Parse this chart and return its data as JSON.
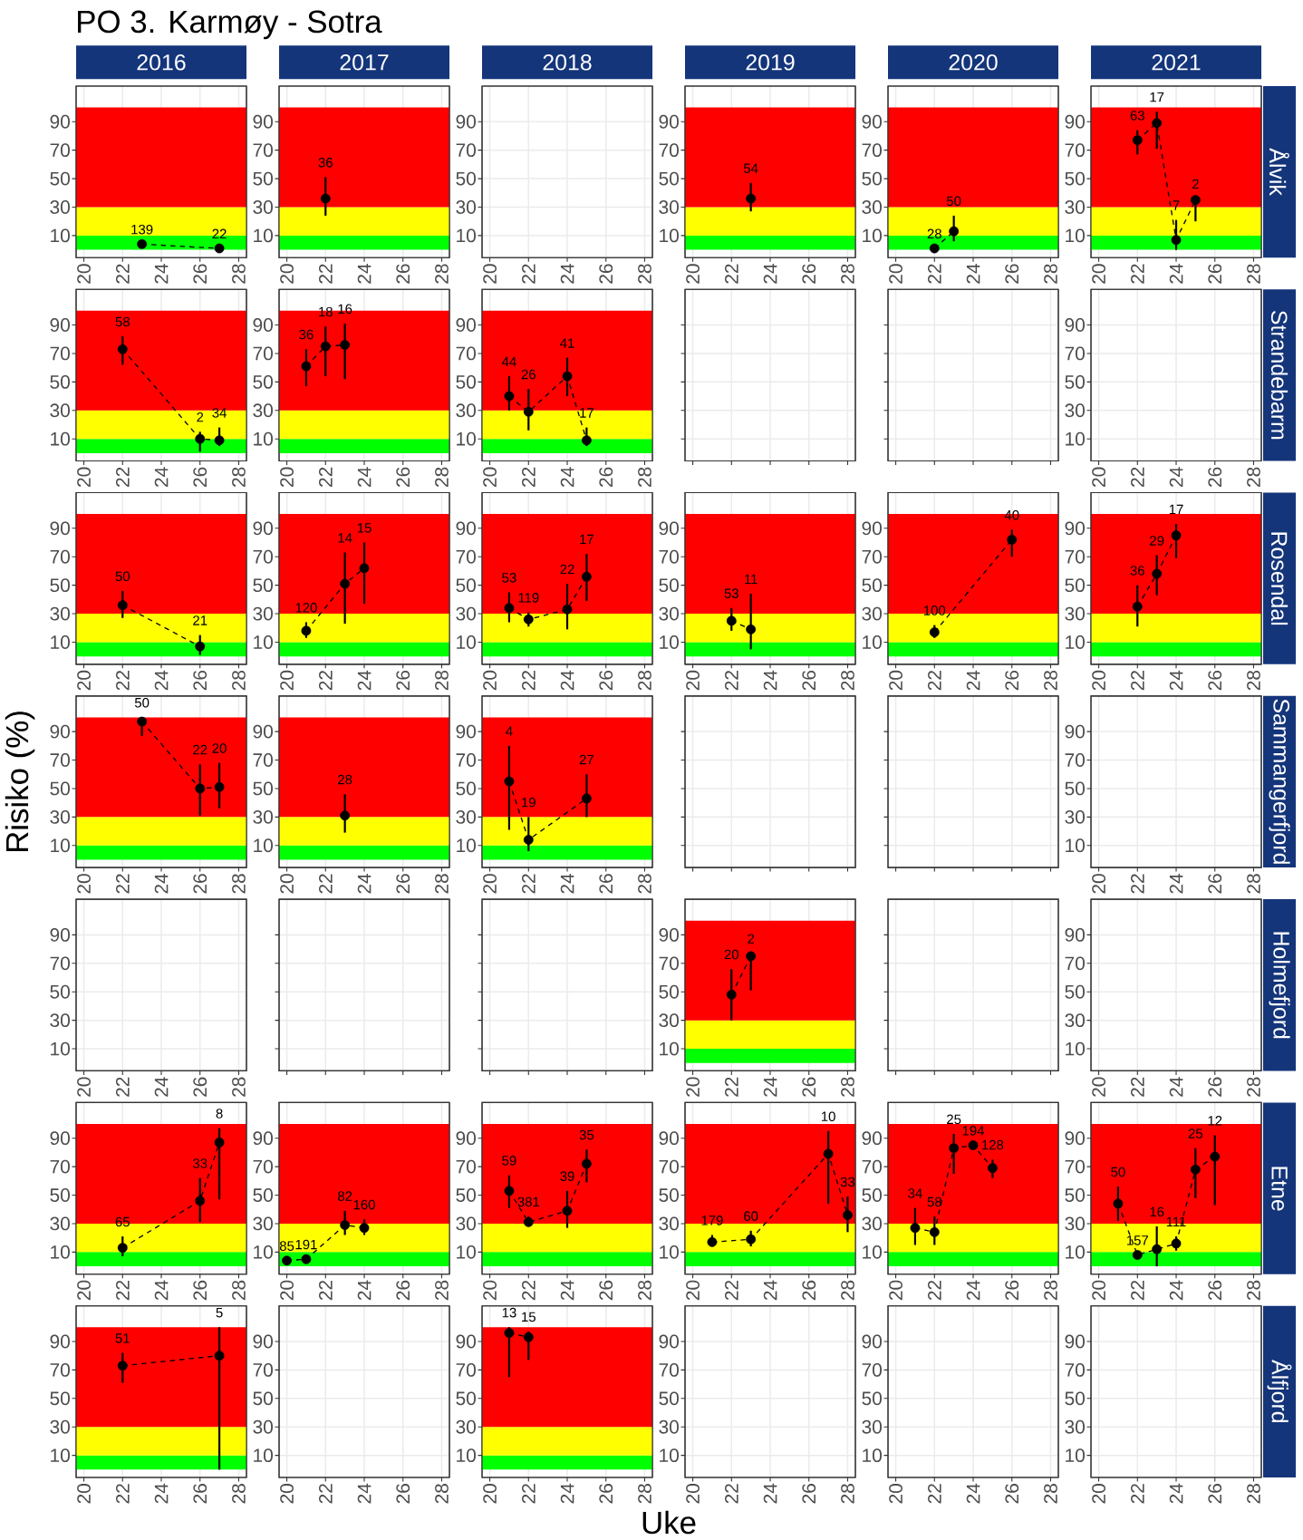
{
  "chart_data": [
    {
      "type": "other",
      "title": "PO 3. Karmøy - Sotra",
      "xlabel": "Uke",
      "ylabel": "Risiko (%)"
    },
    {
      "type": "line",
      "title": "2016",
      "x": [
        23,
        27
      ],
      "values": [
        4,
        1
      ],
      "color": "#000000",
      "marker": "circle",
      "line_style": "dashed",
      "bands": [
        {
          "axis": "y",
          "from": 0,
          "to": 10,
          "color": "#00ff00"
        },
        {
          "axis": "y",
          "from": 10,
          "to": 30,
          "color": "#ffff00"
        },
        {
          "axis": "y",
          "from": 30,
          "to": 100,
          "color": "#ff0000"
        }
      ],
      "annotations": [
        {
          "text": "139",
          "x": 23,
          "y": 4
        },
        {
          "text": "22",
          "x": 27,
          "y": 1
        }
      ],
      "xlim": [
        19.6,
        28.4
      ],
      "ylim": [
        -5.5,
        115
      ],
      "xticks": [
        20,
        22,
        24,
        26,
        28
      ],
      "yticks": [
        10,
        30,
        50,
        70,
        90
      ],
      "grid": true
    },
    {
      "type": "line",
      "title": "2017",
      "x": [
        22
      ],
      "values": [
        36
      ],
      "errors": [
        [
          24,
          51
        ]
      ],
      "color": "#000000",
      "marker": "circle",
      "line_style": "dashed",
      "bands": [
        {
          "axis": "y",
          "from": 0,
          "to": 10,
          "color": "#00ff00"
        },
        {
          "axis": "y",
          "from": 10,
          "to": 30,
          "color": "#ffff00"
        },
        {
          "axis": "y",
          "from": 30,
          "to": 100,
          "color": "#ff0000"
        }
      ],
      "annotations": [
        {
          "text": "36",
          "x": 22,
          "y": 51
        }
      ],
      "xlim": [
        19.6,
        28.4
      ],
      "ylim": [
        -5.5,
        115
      ],
      "xticks": [
        20,
        22,
        24,
        26,
        28
      ],
      "yticks": [
        10,
        30,
        50,
        70,
        90
      ],
      "grid": true
    },
    {
      "type": "line",
      "title": "2018",
      "xlim": [
        19.6,
        28.4
      ],
      "ylim": [
        -5.5,
        115
      ],
      "xticks": [
        20,
        22,
        24,
        26,
        28
      ],
      "yticks": [
        10,
        30,
        50,
        70,
        90
      ],
      "grid": true
    },
    {
      "type": "line",
      "title": "2019",
      "x": [
        23
      ],
      "values": [
        36
      ],
      "errors": [
        [
          27,
          47
        ]
      ],
      "color": "#000000",
      "marker": "circle",
      "line_style": "dashed",
      "bands": [
        {
          "axis": "y",
          "from": 0,
          "to": 10,
          "color": "#00ff00"
        },
        {
          "axis": "y",
          "from": 10,
          "to": 30,
          "color": "#ffff00"
        },
        {
          "axis": "y",
          "from": 30,
          "to": 100,
          "color": "#ff0000"
        }
      ],
      "annotations": [
        {
          "text": "54",
          "x": 23,
          "y": 47
        }
      ],
      "xlim": [
        19.6,
        28.4
      ],
      "ylim": [
        -5.5,
        115
      ],
      "xticks": [
        20,
        22,
        24,
        26,
        28
      ],
      "yticks": [
        10,
        30,
        50,
        70,
        90
      ],
      "grid": true
    },
    {
      "type": "line",
      "title": "2020",
      "x": [
        22,
        23
      ],
      "values": [
        1,
        13
      ],
      "errors": [
        null,
        [
          6,
          24
        ]
      ],
      "color": "#000000",
      "marker": "circle",
      "line_style": "dashed",
      "bands": [
        {
          "axis": "y",
          "from": 0,
          "to": 10,
          "color": "#00ff00"
        },
        {
          "axis": "y",
          "from": 10,
          "to": 30,
          "color": "#ffff00"
        },
        {
          "axis": "y",
          "from": 30,
          "to": 100,
          "color": "#ff0000"
        }
      ],
      "annotations": [
        {
          "text": "28",
          "x": 22,
          "y": 1
        },
        {
          "text": "50",
          "x": 23,
          "y": 24
        }
      ],
      "xlim": [
        19.6,
        28.4
      ],
      "ylim": [
        -5.5,
        115
      ],
      "xticks": [
        20,
        22,
        24,
        26,
        28
      ],
      "yticks": [
        10,
        30,
        50,
        70,
        90
      ],
      "grid": true
    },
    {
      "type": "line",
      "title": "2021",
      "y2label": "Ålvik",
      "x": [
        22,
        23,
        24,
        25
      ],
      "values": [
        77,
        89,
        7,
        35
      ],
      "errors": [
        [
          67,
          84
        ],
        [
          71,
          97
        ],
        [
          0,
          21
        ],
        [
          20,
          36
        ]
      ],
      "color": "#000000",
      "marker": "circle",
      "line_style": "dashed",
      "bands": [
        {
          "axis": "y",
          "from": 0,
          "to": 10,
          "color": "#00ff00"
        },
        {
          "axis": "y",
          "from": 10,
          "to": 30,
          "color": "#ffff00"
        },
        {
          "axis": "y",
          "from": 30,
          "to": 100,
          "color": "#ff0000"
        }
      ],
      "annotations": [
        {
          "text": "63",
          "x": 22,
          "y": 84
        },
        {
          "text": "17",
          "x": 23,
          "y": 97
        },
        {
          "text": "7",
          "x": 24,
          "y": 21
        },
        {
          "text": "2",
          "x": 25,
          "y": 36
        }
      ],
      "xlim": [
        19.6,
        28.4
      ],
      "ylim": [
        -5.5,
        115
      ],
      "xticks": [
        20,
        22,
        24,
        26,
        28
      ],
      "yticks": [
        10,
        30,
        50,
        70,
        90
      ],
      "grid": true
    },
    {
      "type": "line",
      "x": [
        22,
        26,
        27
      ],
      "values": [
        73,
        10,
        9
      ],
      "errors": [
        [
          62,
          82
        ],
        [
          1,
          15
        ],
        [
          5,
          18
        ]
      ],
      "color": "#000000",
      "marker": "circle",
      "line_style": "dashed",
      "bands": [
        {
          "axis": "y",
          "from": 0,
          "to": 10,
          "color": "#00ff00"
        },
        {
          "axis": "y",
          "from": 10,
          "to": 30,
          "color": "#ffff00"
        },
        {
          "axis": "y",
          "from": 30,
          "to": 100,
          "color": "#ff0000"
        }
      ],
      "annotations": [
        {
          "text": "58",
          "x": 22,
          "y": 82
        },
        {
          "text": "2",
          "x": 26,
          "y": 15
        },
        {
          "text": "34",
          "x": 27,
          "y": 18
        }
      ],
      "xlim": [
        19.6,
        28.4
      ],
      "ylim": [
        -5.5,
        115
      ],
      "xticks": [
        20,
        22,
        24,
        26,
        28
      ],
      "yticks": [
        10,
        30,
        50,
        70,
        90
      ],
      "grid": true
    },
    {
      "type": "line",
      "x": [
        21,
        22,
        23
      ],
      "values": [
        61,
        75,
        76
      ],
      "errors": [
        [
          47,
          73
        ],
        [
          54,
          89
        ],
        [
          52,
          91
        ]
      ],
      "color": "#000000",
      "marker": "circle",
      "line_style": "dashed",
      "bands": [
        {
          "axis": "y",
          "from": 0,
          "to": 10,
          "color": "#00ff00"
        },
        {
          "axis": "y",
          "from": 10,
          "to": 30,
          "color": "#ffff00"
        },
        {
          "axis": "y",
          "from": 30,
          "to": 100,
          "color": "#ff0000"
        }
      ],
      "annotations": [
        {
          "text": "36",
          "x": 21,
          "y": 73
        },
        {
          "text": "18",
          "x": 22,
          "y": 89
        },
        {
          "text": "16",
          "x": 23,
          "y": 91
        }
      ],
      "xlim": [
        19.6,
        28.4
      ],
      "ylim": [
        -5.5,
        115
      ],
      "xticks": [
        20,
        22,
        24,
        26,
        28
      ],
      "yticks": [
        10,
        30,
        50,
        70,
        90
      ],
      "grid": true
    },
    {
      "type": "line",
      "x": [
        21,
        22,
        24,
        25
      ],
      "values": [
        40,
        29,
        54,
        9
      ],
      "errors": [
        [
          30,
          54
        ],
        [
          16,
          45
        ],
        [
          40,
          67
        ],
        [
          5,
          18
        ]
      ],
      "color": "#000000",
      "marker": "circle",
      "line_style": "dashed",
      "bands": [
        {
          "axis": "y",
          "from": 0,
          "to": 10,
          "color": "#00ff00"
        },
        {
          "axis": "y",
          "from": 10,
          "to": 30,
          "color": "#ffff00"
        },
        {
          "axis": "y",
          "from": 30,
          "to": 100,
          "color": "#ff0000"
        }
      ],
      "annotations": [
        {
          "text": "44",
          "x": 21,
          "y": 54
        },
        {
          "text": "26",
          "x": 22,
          "y": 45
        },
        {
          "text": "41",
          "x": 24,
          "y": 67
        },
        {
          "text": "17",
          "x": 25,
          "y": 18
        }
      ],
      "xlim": [
        19.6,
        28.4
      ],
      "ylim": [
        -5.5,
        115
      ],
      "xticks": [
        20,
        22,
        24,
        26,
        28
      ],
      "yticks": [
        10,
        30,
        50,
        70,
        90
      ],
      "grid": true
    },
    {
      "type": "line",
      "y2label": "Strandebarm",
      "xlim": [
        19.6,
        28.4
      ],
      "ylim": [
        -5.5,
        115
      ],
      "xticks": [
        20,
        22,
        24,
        26,
        28
      ],
      "yticks": [
        10,
        30,
        50,
        70,
        90
      ],
      "grid": true
    },
    {
      "type": "line",
      "x": [
        22,
        26
      ],
      "values": [
        36,
        7
      ],
      "errors": [
        [
          27,
          46
        ],
        [
          1,
          15
        ]
      ],
      "color": "#000000",
      "marker": "circle",
      "line_style": "dashed",
      "bands": [
        {
          "axis": "y",
          "from": 0,
          "to": 10,
          "color": "#00ff00"
        },
        {
          "axis": "y",
          "from": 10,
          "to": 30,
          "color": "#ffff00"
        },
        {
          "axis": "y",
          "from": 30,
          "to": 100,
          "color": "#ff0000"
        }
      ],
      "annotations": [
        {
          "text": "50",
          "x": 22,
          "y": 46
        },
        {
          "text": "21",
          "x": 26,
          "y": 15
        }
      ],
      "xlim": [
        19.6,
        28.4
      ],
      "ylim": [
        -5.5,
        115
      ],
      "xticks": [
        20,
        22,
        24,
        26,
        28
      ],
      "yticks": [
        10,
        30,
        50,
        70,
        90
      ],
      "grid": true
    },
    {
      "type": "line",
      "x": [
        21,
        23,
        24
      ],
      "values": [
        18,
        51,
        62
      ],
      "errors": [
        [
          13,
          24
        ],
        [
          23,
          73
        ],
        [
          37,
          80
        ]
      ],
      "color": "#000000",
      "marker": "circle",
      "line_style": "dashed",
      "bands": [
        {
          "axis": "y",
          "from": 0,
          "to": 10,
          "color": "#00ff00"
        },
        {
          "axis": "y",
          "from": 10,
          "to": 30,
          "color": "#ffff00"
        },
        {
          "axis": "y",
          "from": 30,
          "to": 100,
          "color": "#ff0000"
        }
      ],
      "annotations": [
        {
          "text": "120",
          "x": 21,
          "y": 24
        },
        {
          "text": "14",
          "x": 23,
          "y": 73
        },
        {
          "text": "15",
          "x": 24,
          "y": 80
        }
      ],
      "xlim": [
        19.6,
        28.4
      ],
      "ylim": [
        -5.5,
        115
      ],
      "xticks": [
        20,
        22,
        24,
        26,
        28
      ],
      "yticks": [
        10,
        30,
        50,
        70,
        90
      ],
      "grid": true
    },
    {
      "type": "line",
      "x": [
        21,
        22,
        24,
        25
      ],
      "values": [
        34,
        26,
        33,
        56
      ],
      "errors": [
        [
          24,
          45
        ],
        [
          21,
          31
        ],
        [
          19,
          51
        ],
        [
          39,
          72
        ]
      ],
      "color": "#000000",
      "marker": "circle",
      "line_style": "dashed",
      "bands": [
        {
          "axis": "y",
          "from": 0,
          "to": 10,
          "color": "#00ff00"
        },
        {
          "axis": "y",
          "from": 10,
          "to": 30,
          "color": "#ffff00"
        },
        {
          "axis": "y",
          "from": 30,
          "to": 100,
          "color": "#ff0000"
        }
      ],
      "annotations": [
        {
          "text": "53",
          "x": 21,
          "y": 45
        },
        {
          "text": "119",
          "x": 22,
          "y": 31
        },
        {
          "text": "22",
          "x": 24,
          "y": 51
        },
        {
          "text": "17",
          "x": 25,
          "y": 72
        }
      ],
      "xlim": [
        19.6,
        28.4
      ],
      "ylim": [
        -5.5,
        115
      ],
      "xticks": [
        20,
        22,
        24,
        26,
        28
      ],
      "yticks": [
        10,
        30,
        50,
        70,
        90
      ],
      "grid": true
    },
    {
      "type": "line",
      "x": [
        22,
        23
      ],
      "values": [
        25,
        19
      ],
      "errors": [
        [
          18,
          34
        ],
        [
          5,
          44
        ]
      ],
      "color": "#000000",
      "marker": "circle",
      "line_style": "dashed",
      "bands": [
        {
          "axis": "y",
          "from": 0,
          "to": 10,
          "color": "#00ff00"
        },
        {
          "axis": "y",
          "from": 10,
          "to": 30,
          "color": "#ffff00"
        },
        {
          "axis": "y",
          "from": 30,
          "to": 100,
          "color": "#ff0000"
        }
      ],
      "annotations": [
        {
          "text": "53",
          "x": 22,
          "y": 34
        },
        {
          "text": "11",
          "x": 23,
          "y": 44
        }
      ],
      "xlim": [
        19.6,
        28.4
      ],
      "ylim": [
        -5.5,
        115
      ],
      "xticks": [
        20,
        22,
        24,
        26,
        28
      ],
      "yticks": [
        10,
        30,
        50,
        70,
        90
      ],
      "grid": true
    },
    {
      "type": "line",
      "x": [
        22,
        26
      ],
      "values": [
        17,
        82
      ],
      "errors": [
        [
          13,
          22
        ],
        [
          70,
          89
        ]
      ],
      "color": "#000000",
      "marker": "circle",
      "line_style": "dashed",
      "bands": [
        {
          "axis": "y",
          "from": 0,
          "to": 10,
          "color": "#00ff00"
        },
        {
          "axis": "y",
          "from": 10,
          "to": 30,
          "color": "#ffff00"
        },
        {
          "axis": "y",
          "from": 30,
          "to": 100,
          "color": "#ff0000"
        }
      ],
      "annotations": [
        {
          "text": "100",
          "x": 22,
          "y": 22
        },
        {
          "text": "40",
          "x": 26,
          "y": 89
        }
      ],
      "xlim": [
        19.6,
        28.4
      ],
      "ylim": [
        -5.5,
        115
      ],
      "xticks": [
        20,
        22,
        24,
        26,
        28
      ],
      "yticks": [
        10,
        30,
        50,
        70,
        90
      ],
      "grid": true
    },
    {
      "type": "line",
      "y2label": "Rosendal",
      "x": [
        22,
        23,
        24
      ],
      "values": [
        35,
        58,
        85
      ],
      "errors": [
        [
          21,
          50
        ],
        [
          43,
          71
        ],
        [
          69,
          93
        ]
      ],
      "color": "#000000",
      "marker": "circle",
      "line_style": "dashed",
      "bands": [
        {
          "axis": "y",
          "from": 0,
          "to": 10,
          "color": "#00ff00"
        },
        {
          "axis": "y",
          "from": 10,
          "to": 30,
          "color": "#ffff00"
        },
        {
          "axis": "y",
          "from": 30,
          "to": 100,
          "color": "#ff0000"
        }
      ],
      "annotations": [
        {
          "text": "36",
          "x": 22,
          "y": 50
        },
        {
          "text": "29",
          "x": 23,
          "y": 71
        },
        {
          "text": "17",
          "x": 24,
          "y": 93
        }
      ],
      "xlim": [
        19.6,
        28.4
      ],
      "ylim": [
        -5.5,
        115
      ],
      "xticks": [
        20,
        22,
        24,
        26,
        28
      ],
      "yticks": [
        10,
        30,
        50,
        70,
        90
      ],
      "grid": true
    },
    {
      "type": "line",
      "x": [
        23,
        26,
        27
      ],
      "values": [
        97,
        50,
        51
      ],
      "errors": [
        [
          87,
          100
        ],
        [
          31,
          67
        ],
        [
          36,
          68
        ]
      ],
      "color": "#000000",
      "marker": "circle",
      "line_style": "dashed",
      "bands": [
        {
          "axis": "y",
          "from": 0,
          "to": 10,
          "color": "#00ff00"
        },
        {
          "axis": "y",
          "from": 10,
          "to": 30,
          "color": "#ffff00"
        },
        {
          "axis": "y",
          "from": 30,
          "to": 100,
          "color": "#ff0000"
        }
      ],
      "annotations": [
        {
          "text": "50",
          "x": 23,
          "y": 100
        },
        {
          "text": "22",
          "x": 26,
          "y": 67
        },
        {
          "text": "20",
          "x": 27,
          "y": 68
        }
      ],
      "xlim": [
        19.6,
        28.4
      ],
      "ylim": [
        -5.5,
        115
      ],
      "xticks": [
        20,
        22,
        24,
        26,
        28
      ],
      "yticks": [
        10,
        30,
        50,
        70,
        90
      ],
      "grid": true
    },
    {
      "type": "line",
      "x": [
        23
      ],
      "values": [
        31
      ],
      "errors": [
        [
          19,
          46
        ]
      ],
      "color": "#000000",
      "marker": "circle",
      "line_style": "dashed",
      "bands": [
        {
          "axis": "y",
          "from": 0,
          "to": 10,
          "color": "#00ff00"
        },
        {
          "axis": "y",
          "from": 10,
          "to": 30,
          "color": "#ffff00"
        },
        {
          "axis": "y",
          "from": 30,
          "to": 100,
          "color": "#ff0000"
        }
      ],
      "annotations": [
        {
          "text": "28",
          "x": 23,
          "y": 46
        }
      ],
      "xlim": [
        19.6,
        28.4
      ],
      "ylim": [
        -5.5,
        115
      ],
      "xticks": [
        20,
        22,
        24,
        26,
        28
      ],
      "yticks": [
        10,
        30,
        50,
        70,
        90
      ],
      "grid": true
    },
    {
      "type": "line",
      "x": [
        21,
        22,
        25
      ],
      "values": [
        55,
        14,
        43
      ],
      "errors": [
        [
          21,
          80
        ],
        [
          6,
          30
        ],
        [
          30,
          60
        ]
      ],
      "color": "#000000",
      "marker": "circle",
      "line_style": "dashed",
      "bands": [
        {
          "axis": "y",
          "from": 0,
          "to": 10,
          "color": "#00ff00"
        },
        {
          "axis": "y",
          "from": 10,
          "to": 30,
          "color": "#ffff00"
        },
        {
          "axis": "y",
          "from": 30,
          "to": 100,
          "color": "#ff0000"
        }
      ],
      "annotations": [
        {
          "text": "4",
          "x": 21,
          "y": 80
        },
        {
          "text": "19",
          "x": 22,
          "y": 30
        },
        {
          "text": "27",
          "x": 25,
          "y": 60
        }
      ],
      "xlim": [
        19.6,
        28.4
      ],
      "ylim": [
        -5.5,
        115
      ],
      "xticks": [
        20,
        22,
        24,
        26,
        28
      ],
      "yticks": [
        10,
        30,
        50,
        70,
        90
      ],
      "grid": true
    },
    {
      "type": "line",
      "y2label": "Sammangerfjord",
      "xlim": [
        19.6,
        28.4
      ],
      "ylim": [
        -5.5,
        115
      ],
      "xticks": [
        20,
        22,
        24,
        26,
        28
      ],
      "yticks": [
        10,
        30,
        50,
        70,
        90
      ],
      "grid": true
    },
    {
      "type": "line",
      "xlim": [
        19.6,
        28.4
      ],
      "ylim": [
        -5.5,
        115
      ],
      "xticks": [
        20,
        22,
        24,
        26,
        28
      ],
      "yticks": [
        10,
        30,
        50,
        70,
        90
      ],
      "grid": true
    },
    {
      "type": "line",
      "x": [
        22,
        23
      ],
      "values": [
        48,
        75
      ],
      "errors": [
        [
          30,
          66
        ],
        [
          51,
          77
        ]
      ],
      "color": "#000000",
      "marker": "circle",
      "line_style": "dashed",
      "bands": [
        {
          "axis": "y",
          "from": 0,
          "to": 10,
          "color": "#00ff00"
        },
        {
          "axis": "y",
          "from": 10,
          "to": 30,
          "color": "#ffff00"
        },
        {
          "axis": "y",
          "from": 30,
          "to": 100,
          "color": "#ff0000"
        }
      ],
      "annotations": [
        {
          "text": "20",
          "x": 22,
          "y": 66
        },
        {
          "text": "2",
          "x": 23,
          "y": 77
        }
      ],
      "xlim": [
        19.6,
        28.4
      ],
      "ylim": [
        -5.5,
        115
      ],
      "xticks": [
        20,
        22,
        24,
        26,
        28
      ],
      "yticks": [
        10,
        30,
        50,
        70,
        90
      ],
      "grid": true
    },
    {
      "type": "line",
      "y2label": "Holmefjord",
      "xlim": [
        19.6,
        28.4
      ],
      "ylim": [
        -5.5,
        115
      ],
      "xticks": [
        20,
        22,
        24,
        26,
        28
      ],
      "yticks": [
        10,
        30,
        50,
        70,
        90
      ],
      "grid": true
    },
    {
      "type": "line",
      "x": [
        22,
        26,
        27
      ],
      "values": [
        13,
        46,
        87
      ],
      "errors": [
        [
          7,
          21
        ],
        [
          31,
          62
        ],
        [
          47,
          97
        ]
      ],
      "color": "#000000",
      "marker": "circle",
      "line_style": "dashed",
      "bands": [
        {
          "axis": "y",
          "from": 0,
          "to": 10,
          "color": "#00ff00"
        },
        {
          "axis": "y",
          "from": 10,
          "to": 30,
          "color": "#ffff00"
        },
        {
          "axis": "y",
          "from": 30,
          "to": 100,
          "color": "#ff0000"
        }
      ],
      "annotations": [
        {
          "text": "65",
          "x": 22,
          "y": 21
        },
        {
          "text": "33",
          "x": 26,
          "y": 62
        },
        {
          "text": "8",
          "x": 27,
          "y": 97
        }
      ],
      "xlim": [
        19.6,
        28.4
      ],
      "ylim": [
        -5.5,
        115
      ],
      "xticks": [
        20,
        22,
        24,
        26,
        28
      ],
      "yticks": [
        10,
        30,
        50,
        70,
        90
      ],
      "grid": true
    },
    {
      "type": "line",
      "x": [
        20,
        21,
        23,
        24
      ],
      "values": [
        4,
        5,
        29,
        27
      ],
      "errors": [
        null,
        null,
        [
          22,
          39
        ],
        [
          22,
          33
        ]
      ],
      "color": "#000000",
      "marker": "circle",
      "line_style": "dashed",
      "bands": [
        {
          "axis": "y",
          "from": 0,
          "to": 10,
          "color": "#00ff00"
        },
        {
          "axis": "y",
          "from": 10,
          "to": 30,
          "color": "#ffff00"
        },
        {
          "axis": "y",
          "from": 30,
          "to": 100,
          "color": "#ff0000"
        }
      ],
      "annotations": [
        {
          "text": "85",
          "x": 20,
          "y": 4
        },
        {
          "text": "191",
          "x": 21,
          "y": 5
        },
        {
          "text": "82",
          "x": 23,
          "y": 39
        },
        {
          "text": "160",
          "x": 24,
          "y": 33
        }
      ],
      "xlim": [
        19.6,
        28.4
      ],
      "ylim": [
        -5.5,
        115
      ],
      "xticks": [
        20,
        22,
        24,
        26,
        28
      ],
      "yticks": [
        10,
        30,
        50,
        70,
        90
      ],
      "grid": true
    },
    {
      "type": "line",
      "x": [
        21,
        22,
        24,
        25
      ],
      "values": [
        53,
        31,
        39,
        72
      ],
      "errors": [
        [
          41,
          64
        ],
        [
          29,
          35
        ],
        [
          27,
          53
        ],
        [
          59,
          82
        ]
      ],
      "color": "#000000",
      "marker": "circle",
      "line_style": "dashed",
      "bands": [
        {
          "axis": "y",
          "from": 0,
          "to": 10,
          "color": "#00ff00"
        },
        {
          "axis": "y",
          "from": 10,
          "to": 30,
          "color": "#ffff00"
        },
        {
          "axis": "y",
          "from": 30,
          "to": 100,
          "color": "#ff0000"
        }
      ],
      "annotations": [
        {
          "text": "59",
          "x": 21,
          "y": 64
        },
        {
          "text": "381",
          "x": 22,
          "y": 35
        },
        {
          "text": "39",
          "x": 24,
          "y": 53
        },
        {
          "text": "35",
          "x": 25,
          "y": 82
        }
      ],
      "xlim": [
        19.6,
        28.4
      ],
      "ylim": [
        -5.5,
        115
      ],
      "xticks": [
        20,
        22,
        24,
        26,
        28
      ],
      "yticks": [
        10,
        30,
        50,
        70,
        90
      ],
      "grid": true
    },
    {
      "type": "line",
      "x": [
        21,
        23,
        27,
        28
      ],
      "values": [
        17,
        19,
        79,
        36
      ],
      "errors": [
        [
          14,
          22
        ],
        [
          14,
          25
        ],
        [
          44,
          95
        ],
        [
          24,
          49
        ]
      ],
      "color": "#000000",
      "marker": "circle",
      "line_style": "dashed",
      "bands": [
        {
          "axis": "y",
          "from": 0,
          "to": 10,
          "color": "#00ff00"
        },
        {
          "axis": "y",
          "from": 10,
          "to": 30,
          "color": "#ffff00"
        },
        {
          "axis": "y",
          "from": 30,
          "to": 100,
          "color": "#ff0000"
        }
      ],
      "annotations": [
        {
          "text": "179",
          "x": 21,
          "y": 22
        },
        {
          "text": "60",
          "x": 23,
          "y": 25
        },
        {
          "text": "10",
          "x": 27,
          "y": 95
        },
        {
          "text": "33",
          "x": 28,
          "y": 49
        }
      ],
      "xlim": [
        19.6,
        28.4
      ],
      "ylim": [
        -5.5,
        115
      ],
      "xticks": [
        20,
        22,
        24,
        26,
        28
      ],
      "yticks": [
        10,
        30,
        50,
        70,
        90
      ],
      "grid": true
    },
    {
      "type": "line",
      "x": [
        21,
        22,
        23,
        24,
        25
      ],
      "values": [
        27,
        24,
        83,
        85,
        69
      ],
      "errors": [
        [
          15,
          41
        ],
        [
          15,
          35
        ],
        [
          65,
          93
        ],
        null,
        [
          62,
          75
        ]
      ],
      "color": "#000000",
      "marker": "circle",
      "line_style": "dashed",
      "bands": [
        {
          "axis": "y",
          "from": 0,
          "to": 10,
          "color": "#00ff00"
        },
        {
          "axis": "y",
          "from": 10,
          "to": 30,
          "color": "#ffff00"
        },
        {
          "axis": "y",
          "from": 30,
          "to": 100,
          "color": "#ff0000"
        }
      ],
      "annotations": [
        {
          "text": "34",
          "x": 21,
          "y": 41
        },
        {
          "text": "58",
          "x": 22,
          "y": 35
        },
        {
          "text": "25",
          "x": 23,
          "y": 93
        },
        {
          "text": "194",
          "x": 24,
          "y": 85
        },
        {
          "text": "128",
          "x": 25,
          "y": 75
        }
      ],
      "xlim": [
        19.6,
        28.4
      ],
      "ylim": [
        -5.5,
        115
      ],
      "xticks": [
        20,
        22,
        24,
        26,
        28
      ],
      "yticks": [
        10,
        30,
        50,
        70,
        90
      ],
      "grid": true
    },
    {
      "type": "line",
      "y2label": "Etne",
      "x": [
        21,
        22,
        23,
        24,
        25,
        26
      ],
      "values": [
        44,
        8,
        12,
        16,
        68,
        77
      ],
      "errors": [
        [
          32,
          56
        ],
        null,
        [
          0,
          28
        ],
        [
          11,
          21
        ],
        [
          48,
          83
        ],
        [
          43,
          92
        ]
      ],
      "color": "#000000",
      "marker": "circle",
      "line_style": "dashed",
      "bands": [
        {
          "axis": "y",
          "from": 0,
          "to": 10,
          "color": "#00ff00"
        },
        {
          "axis": "y",
          "from": 10,
          "to": 30,
          "color": "#ffff00"
        },
        {
          "axis": "y",
          "from": 30,
          "to": 100,
          "color": "#ff0000"
        }
      ],
      "annotations": [
        {
          "text": "50",
          "x": 21,
          "y": 56
        },
        {
          "text": "157",
          "x": 22,
          "y": 8
        },
        {
          "text": "16",
          "x": 23,
          "y": 28
        },
        {
          "text": "111",
          "x": 24,
          "y": 21
        },
        {
          "text": "25",
          "x": 25,
          "y": 83
        },
        {
          "text": "12",
          "x": 26,
          "y": 92
        }
      ],
      "xlim": [
        19.6,
        28.4
      ],
      "ylim": [
        -5.5,
        115
      ],
      "xticks": [
        20,
        22,
        24,
        26,
        28
      ],
      "yticks": [
        10,
        30,
        50,
        70,
        90
      ],
      "grid": true
    },
    {
      "type": "line",
      "x": [
        22,
        27
      ],
      "values": [
        73,
        80
      ],
      "errors": [
        [
          61,
          82
        ],
        [
          0,
          100
        ]
      ],
      "color": "#000000",
      "marker": "circle",
      "line_style": "dashed",
      "bands": [
        {
          "axis": "y",
          "from": 0,
          "to": 10,
          "color": "#00ff00"
        },
        {
          "axis": "y",
          "from": 10,
          "to": 30,
          "color": "#ffff00"
        },
        {
          "axis": "y",
          "from": 30,
          "to": 100,
          "color": "#ff0000"
        }
      ],
      "annotations": [
        {
          "text": "51",
          "x": 22,
          "y": 82
        },
        {
          "text": "5",
          "x": 27,
          "y": 100
        }
      ],
      "xlim": [
        19.6,
        28.4
      ],
      "ylim": [
        -5.5,
        115
      ],
      "xticks": [
        20,
        22,
        24,
        26,
        28
      ],
      "yticks": [
        10,
        30,
        50,
        70,
        90
      ],
      "grid": true
    },
    {
      "type": "line",
      "xlim": [
        19.6,
        28.4
      ],
      "ylim": [
        -5.5,
        115
      ],
      "xticks": [
        20,
        22,
        24,
        26,
        28
      ],
      "yticks": [
        10,
        30,
        50,
        70,
        90
      ],
      "grid": true
    },
    {
      "type": "line",
      "x": [
        21,
        22
      ],
      "values": [
        96,
        93
      ],
      "errors": [
        [
          65,
          100
        ],
        [
          77,
          97
        ]
      ],
      "color": "#000000",
      "marker": "circle",
      "line_style": "dashed",
      "bands": [
        {
          "axis": "y",
          "from": 0,
          "to": 10,
          "color": "#00ff00"
        },
        {
          "axis": "y",
          "from": 10,
          "to": 30,
          "color": "#ffff00"
        },
        {
          "axis": "y",
          "from": 30,
          "to": 100,
          "color": "#ff0000"
        }
      ],
      "annotations": [
        {
          "text": "13",
          "x": 21,
          "y": 100
        },
        {
          "text": "15",
          "x": 22,
          "y": 97
        }
      ],
      "xlim": [
        19.6,
        28.4
      ],
      "ylim": [
        -5.5,
        115
      ],
      "xticks": [
        20,
        22,
        24,
        26,
        28
      ],
      "yticks": [
        10,
        30,
        50,
        70,
        90
      ],
      "grid": true
    },
    {
      "type": "line",
      "xlim": [
        19.6,
        28.4
      ],
      "ylim": [
        -5.5,
        115
      ],
      "xticks": [
        20,
        22,
        24,
        26,
        28
      ],
      "yticks": [
        10,
        30,
        50,
        70,
        90
      ],
      "grid": true
    },
    {
      "type": "line",
      "xlim": [
        19.6,
        28.4
      ],
      "ylim": [
        -5.5,
        115
      ],
      "xticks": [
        20,
        22,
        24,
        26,
        28
      ],
      "yticks": [
        10,
        30,
        50,
        70,
        90
      ],
      "grid": true
    },
    {
      "type": "line",
      "y2label": "Ålfjord",
      "xlim": [
        19.6,
        28.4
      ],
      "ylim": [
        -5.5,
        115
      ],
      "xticks": [
        20,
        22,
        24,
        26,
        28
      ],
      "yticks": [
        10,
        30,
        50,
        70,
        90
      ],
      "grid": true
    }
  ]
}
